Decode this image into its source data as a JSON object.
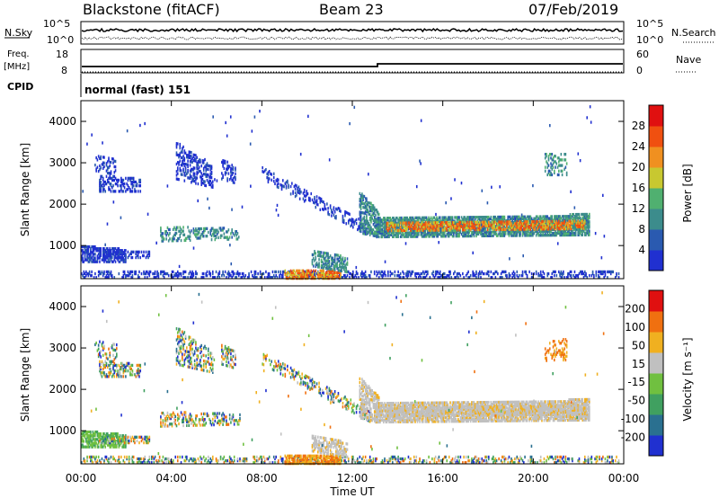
{
  "header": {
    "station": "Blackstone (fitACF)",
    "beam": "Beam 23",
    "date": "07/Feb/2019"
  },
  "noise_panel": {
    "left_label": "N.Sky",
    "right_label": "N.Search",
    "left_ticks": [
      "10^5",
      "10^0"
    ],
    "right_ticks": [
      "10^5",
      "10^0"
    ]
  },
  "freq_panel": {
    "left_label_top": "Freq.",
    "left_label_bottom": "[MHz]",
    "left_ticks": [
      "18",
      "8"
    ],
    "right_label": "Nave",
    "right_ticks": [
      "60",
      "0"
    ],
    "cpid_label": "CPID",
    "cpid_text": "normal (fast) 151"
  },
  "chart_data": [
    {
      "type": "heatmap",
      "title": "",
      "ylabel": "Slant Range [km]",
      "xlabel": "",
      "ylim": [
        200,
        4500
      ],
      "yticks": [
        "4000",
        "3000",
        "2000",
        "1000"
      ],
      "colorbar": {
        "label": "Power [dB]",
        "ticks": [
          "28",
          "24",
          "20",
          "16",
          "12",
          "8",
          "4"
        ],
        "colors": [
          "#2030d0",
          "#2a5ab0",
          "#3c8c8c",
          "#50b070",
          "#c8c830",
          "#f09020",
          "#f05010",
          "#e01010"
        ]
      }
    },
    {
      "type": "heatmap",
      "title": "",
      "ylabel": "Slant Range [km]",
      "xlabel": "Time UT",
      "ylim": [
        200,
        4500
      ],
      "yticks": [
        "4000",
        "3000",
        "2000",
        "1000"
      ],
      "xticks": [
        "00:00",
        "04:00",
        "08:00",
        "12:00",
        "16:00",
        "20:00",
        "00:00"
      ],
      "colorbar": {
        "label": "Velocity [m s⁻¹]",
        "ticks": [
          "200",
          "100",
          "50",
          "15",
          "-15",
          "-50",
          "-100",
          "-200"
        ],
        "colors": [
          "#2030d0",
          "#2a7090",
          "#40a060",
          "#70c040",
          "#c0c0c0",
          "#f0b020",
          "#f07010",
          "#e01010"
        ]
      }
    }
  ]
}
